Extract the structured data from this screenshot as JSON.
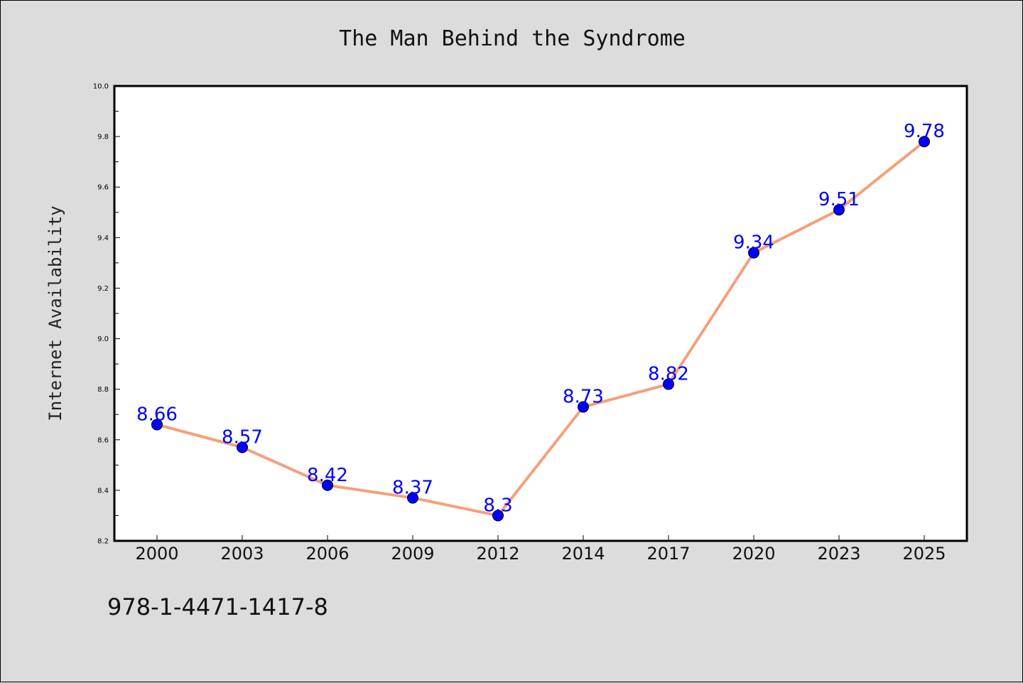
{
  "chart_data": {
    "type": "line",
    "title": "The Man Behind the Syndrome",
    "xlabel": "",
    "ylabel": "Internet Availability",
    "categories": [
      "2000",
      "2003",
      "2006",
      "2009",
      "2012",
      "2014",
      "2017",
      "2020",
      "2023",
      "2025"
    ],
    "series": [
      {
        "values": [
          8.66,
          8.57,
          8.42,
          8.37,
          8.3,
          8.73,
          8.82,
          9.34,
          9.51,
          9.78
        ],
        "data_labels": [
          "8.66",
          "8.57",
          "8.42",
          "8.37",
          "8.3",
          "8.73",
          "8.82",
          "9.34",
          "9.51",
          "9.78"
        ],
        "line_color": "#f4a07a",
        "marker_color": "#0000ff"
      }
    ],
    "ylim": [
      8.2,
      10.0
    ],
    "yticks": [
      "8.2",
      "8.4",
      "8.6",
      "8.8",
      "9.0",
      "9.2",
      "9.4",
      "9.6",
      "9.8",
      "10.0"
    ],
    "grid": false,
    "legend": "none"
  },
  "footer_text": "978-1-4471-1417-8",
  "colors": {
    "background": "#dcdcdc",
    "plot_background": "#ffffff"
  }
}
